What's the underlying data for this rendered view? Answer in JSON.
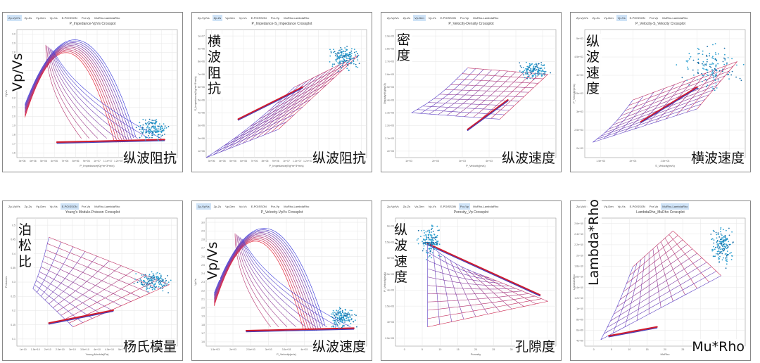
{
  "tab_labels": [
    "Zp-Vp/Vs",
    "Zp-Zs",
    "Vp-Den",
    "Vp-Vs",
    "E-POISSON",
    "Por-Vp",
    "MuRho-LambdaRho"
  ],
  "chart_data": [
    {
      "type": "scatter",
      "title": "P_Impedance-VpVs Crosspot",
      "xlabel": "P_Impedance(Kg*m^3*m/s)",
      "ylabel": "VpVs",
      "active_tab": 0,
      "overlay": {
        "text": "Vp/Vs",
        "rotated": true
      },
      "caption": "纵波阻抗",
      "xticks": [
        "3e+06",
        "4e+06",
        "5e+06",
        "6e+06",
        "7e+06",
        "8e+06",
        "9e+06",
        "1e+07",
        "1.1e+07",
        "1.2e+07",
        "1.3e+07",
        "1.4e+07",
        "1.5e+07",
        "1.6e+07",
        "1.7e+07"
      ],
      "yticks": [
        "3.0",
        "2.9",
        "2.8",
        "2.6",
        "2.5",
        "2.4",
        "2.3",
        "2.2",
        "2.1",
        "2.0",
        "1.9",
        "1.8",
        "1.7",
        "1.6"
      ]
    },
    {
      "type": "scatter",
      "title": "P_Impedance-S_Impedance Crossplot",
      "xlabel": "P_Impedance(Kg*m^3*m/s)",
      "ylabel": "S_Impedance(Kg*m^3*m/s)",
      "active_tab": 1,
      "overlay": {
        "text": "横波阻抗",
        "vertical": true
      },
      "caption": "纵波阻抗",
      "xticks": [
        "3e+06",
        "4e+06",
        "5e+06",
        "6e+06",
        "7e+06",
        "8e+06",
        "9e+06",
        "1e+07",
        "1.1e+07",
        "1.2e+07",
        "1.3e+07",
        "1.4e+07",
        "1.5e+07",
        "1.6e+07",
        "1.7e+07"
      ],
      "yticks": [
        "1e+07",
        "9e+06",
        "8e+06",
        "7e+06",
        "6e+06",
        "5e+06",
        "4e+06",
        "3e+06",
        "2e+06",
        "1e+06"
      ]
    },
    {
      "type": "scatter",
      "title": "P_Velocity-Density Crossplot",
      "xlabel": "P_Velocity(m/s)",
      "ylabel": "Density(Kg/m^3)",
      "active_tab": 2,
      "overlay": {
        "text": "密度",
        "vertical": true
      },
      "caption": "纵波速度",
      "xticks": [
        "1e+03",
        "2e+03",
        "3e+03",
        "4e+03",
        "5e+03",
        "6e+03"
      ],
      "yticks": [
        "2.9e+03",
        "2.8e+03",
        "2.7e+03",
        "2.6e+03",
        "2.5e+03",
        "2.4e+03",
        "2.3e+03",
        "2.2e+03",
        "2.1e+03",
        "2e+03"
      ]
    },
    {
      "type": "scatter",
      "title": "P_Velocity-S_Velocity Crossplot",
      "xlabel": "S_Velocity(m/s)",
      "ylabel": "P_Velocity(m/s)",
      "active_tab": 3,
      "overlay": {
        "text": "纵波速度",
        "vertical": true
      },
      "caption": "横波速度",
      "xticks": [
        "1.5e+03",
        "2e+03",
        "2.5e+03",
        "3e+03",
        "3.5e+03"
      ],
      "yticks": [
        "5e+03",
        "4.5e+03",
        "4e+03",
        "3.5e+03",
        "3e+03",
        "2.5e+03",
        "2e+03"
      ]
    },
    {
      "type": "scatter",
      "title": "Young's Module-Poisson Crossplot",
      "xlabel": "Young Module(Pa)",
      "ylabel": "Poissons",
      "active_tab": 4,
      "overlay": {
        "text": "泊松比",
        "vertical": true
      },
      "caption": "杨氏模量",
      "xticks": [
        "1e+10",
        "1.5e+10",
        "2e+10",
        "2.5e+10",
        "3e+10",
        "3.5e+10",
        "4e+10",
        "4.5e+10",
        "5e+10",
        "5.5e+10",
        "6e+10",
        "6.5e+10",
        "7e+10"
      ],
      "yticks": [
        "0.5",
        "0.45",
        "0.4",
        "0.35",
        "0.3",
        "0.25",
        "0.2",
        "0.15",
        "0.1"
      ]
    },
    {
      "type": "scatter",
      "title": "P_Velocity-VpVs Crossplot",
      "xlabel": "P_Velocity(m/s)",
      "ylabel": "VpVs",
      "active_tab": 0,
      "overlay": {
        "text": "Vp/Vs",
        "rotated": true
      },
      "caption": "纵波速度",
      "xticks": [
        "1.5e+03",
        "2e+03",
        "2.5e+03",
        "3e+03",
        "3.5e+03",
        "4e+03",
        "4.5e+03",
        "5e+03",
        "5.5e+03"
      ],
      "yticks": [
        "3.0",
        "2.9",
        "2.8",
        "2.7",
        "2.6",
        "2.5",
        "2.4",
        "2.3",
        "2.2",
        "2.1",
        "2.0",
        "1.9",
        "1.8",
        "1.7",
        "1.6"
      ]
    },
    {
      "type": "scatter",
      "title": "Porosity_Vp Crossplot",
      "xlabel": "Porosity",
      "ylabel": "P_Velocity(m/s)",
      "active_tab": 5,
      "overlay": {
        "text": "纵波速度",
        "vertical": true
      },
      "caption": "孔隙度",
      "xticks": [
        "0",
        "5",
        "10",
        "15",
        "20",
        "25",
        "30",
        "35",
        "40"
      ],
      "yticks": [
        "6e+03",
        "5.5e+03",
        "5e+03",
        "4.5e+03",
        "4e+03",
        "3.5e+03",
        "3e+03",
        "2.5e+03"
      ]
    },
    {
      "type": "scatter",
      "title": "LambdaRho_MuRho Crossplot",
      "xlabel": "MuRho",
      "ylabel": "LambdaRho",
      "active_tab": 6,
      "overlay": {
        "text": "Lambda*Rho",
        "rotated": true
      },
      "caption": "Mu*Rho",
      "xticks": [
        "0",
        "5",
        "10",
        "15",
        "20",
        "25",
        "30",
        "35",
        "40"
      ],
      "yticks": [
        "2.6e+10",
        "2.4e+10",
        "2.2e+10",
        "2e+10",
        "1.8e+10",
        "1.6e+10",
        "1.4e+10",
        "1.2e+10",
        "1e+10",
        "8e+09",
        "6e+09",
        "4e+09"
      ]
    }
  ]
}
